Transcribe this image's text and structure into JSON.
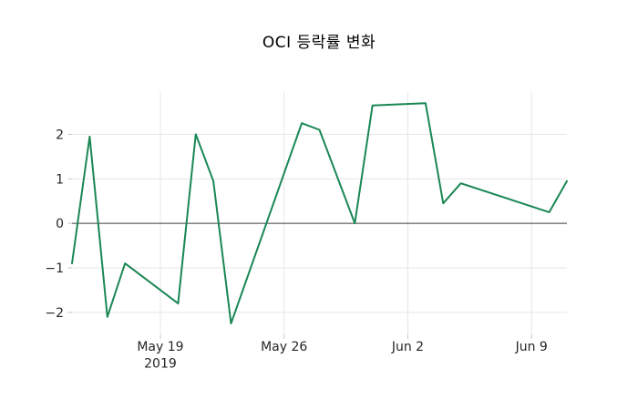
{
  "page": {
    "background_color": "#ffffff"
  },
  "chart_data": {
    "type": "line",
    "title": "OCI 등락률 변화",
    "xlabel": "",
    "ylabel": "",
    "grid": true,
    "legend_position": "none",
    "x_axis": {
      "lim_day_offsets": [
        0,
        28
      ],
      "ticks": [
        {
          "label": "May 19",
          "sublabel": "2019",
          "day_offset": 5
        },
        {
          "label": "May 26",
          "sublabel": "",
          "day_offset": 12
        },
        {
          "label": "Jun 2",
          "sublabel": "",
          "day_offset": 19
        },
        {
          "label": "Jun 9",
          "sublabel": "",
          "day_offset": 26
        }
      ]
    },
    "y_axis": {
      "lim": [
        -2.5,
        2.95
      ],
      "ticks": [
        {
          "label": "2",
          "value": 2
        },
        {
          "label": "1",
          "value": 1
        },
        {
          "label": "0",
          "value": 0
        },
        {
          "label": "−1",
          "value": -1
        },
        {
          "label": "−2",
          "value": -2
        }
      ]
    },
    "zero_line": {
      "show": true,
      "color": "#3d3d3d"
    },
    "series": [
      {
        "name": "OCI 등락률",
        "color": "#1a8754",
        "line_width": 2,
        "points": [
          {
            "date": "2019-05-14",
            "day_offset": 0,
            "value": -0.9
          },
          {
            "date": "2019-05-15",
            "day_offset": 1,
            "value": 1.95
          },
          {
            "date": "2019-05-16",
            "day_offset": 2,
            "value": -2.1
          },
          {
            "date": "2019-05-17",
            "day_offset": 3,
            "value": -0.9
          },
          {
            "date": "2019-05-20",
            "day_offset": 6,
            "value": -1.8
          },
          {
            "date": "2019-05-21",
            "day_offset": 7,
            "value": 2.0
          },
          {
            "date": "2019-05-22",
            "day_offset": 8,
            "value": 0.95
          },
          {
            "date": "2019-05-23",
            "day_offset": 9,
            "value": -2.25
          },
          {
            "date": "2019-05-27",
            "day_offset": 13,
            "value": 2.25
          },
          {
            "date": "2019-05-28",
            "day_offset": 14,
            "value": 2.1
          },
          {
            "date": "2019-05-30",
            "day_offset": 16,
            "value": 0.0
          },
          {
            "date": "2019-05-31",
            "day_offset": 17,
            "value": 2.65
          },
          {
            "date": "2019-06-03",
            "day_offset": 20,
            "value": 2.7
          },
          {
            "date": "2019-06-04",
            "day_offset": 21,
            "value": 0.45
          },
          {
            "date": "2019-06-05",
            "day_offset": 22,
            "value": 0.9
          },
          {
            "date": "2019-06-10",
            "day_offset": 27,
            "value": 0.25
          },
          {
            "date": "2019-06-11",
            "day_offset": 28,
            "value": 0.95
          }
        ]
      }
    ],
    "style": {
      "grid_color": "#e6e6e6",
      "tick_mark_color": "#c4c4c4",
      "tick_label_color": "#262626",
      "title_color": "#000000"
    }
  }
}
